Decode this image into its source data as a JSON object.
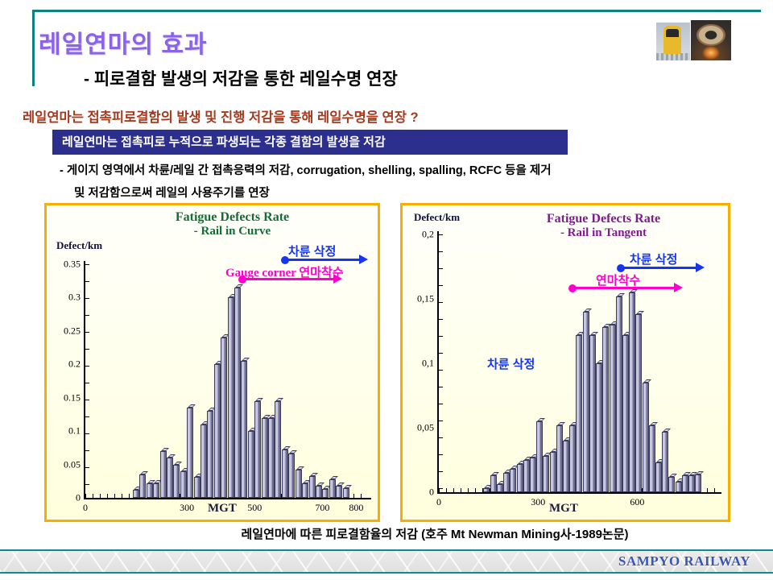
{
  "slide": {
    "title": "레일연마의 효과",
    "subtitle": "- 피로결함 발생의 저감을 통한 레일수명 연장",
    "lead_question": "레일연마는 접촉피로결함의 발생 및 진행 저감을 통해 레일수명을 연장  ?",
    "highlight": "레일연마는 접촉피로 누적으로 파생되는 각종 결함의 발생을 저감",
    "bullets": [
      "- 게이지 영역에서 차륜/레일 간 접촉응력의 저감, corrugation, shelling, spalling, RCFC 등을 제거",
      "및 저감함으로써 레일의 사용주기를 연장"
    ],
    "caption": "레일연마에 따른 피로결함율의 저감 (호주 Mt Newman Mining사-1989논문)",
    "footer_brand": "SAMPYO RAILWAY"
  },
  "photos": {
    "train": "yellow-train-on-track-photo",
    "grinder": "rail-grinding-wheel-with-sparks-photo"
  },
  "colors": {
    "title_purple": "#8a63e8",
    "lead_red": "#a53a1e",
    "highlight_bg": "#2d2f8f",
    "chart_border_gold": "#f5ae01",
    "curve_title_green": "#156b35",
    "tangent_title_purple": "#7b1e8a",
    "annotation_blue": "#1535ee",
    "annotation_magenta": "#ff00cc",
    "bar_face": "#c6c6e2",
    "bar_side": "#6e6e8e",
    "teal_rule": "#0e8080",
    "footer_brand_blue": "#3a56b0"
  },
  "chart_data": [
    {
      "type": "bar",
      "title": "Fatigue Defects Rate",
      "subtitle": "- Rail in Curve",
      "ylabel": "Defect/km",
      "xlabel": "MGT",
      "ylim": [
        0,
        0.35
      ],
      "yticks": [
        0,
        0.05,
        0.1,
        0.15,
        0.2,
        0.25,
        0.3,
        0.35
      ],
      "yticklabels": [
        "0",
        "0.05",
        "0.1",
        "0.15",
        "0.2",
        "0.25",
        "0.3",
        "0.35"
      ],
      "xlim": [
        0,
        830
      ],
      "xticks": [
        0,
        300,
        500,
        700,
        800
      ],
      "x_start": 140,
      "x_step": 20,
      "values": [
        0.012,
        0.035,
        0.022,
        0.022,
        0.07,
        0.06,
        0.05,
        0.04,
        0.135,
        0.032,
        0.11,
        0.13,
        0.2,
        0.24,
        0.3,
        0.315,
        0.205,
        0.1,
        0.145,
        0.12,
        0.12,
        0.145,
        0.072,
        0.067,
        0.042,
        0.022,
        0.033,
        0.018,
        0.013,
        0.028,
        0.018,
        0.014
      ],
      "annotations": [
        {
          "id": "wheel-truing",
          "text": "차륜 삭정",
          "color": "#1535ee",
          "arrow_from_mgt": 580,
          "arrow_to_mgt": 800
        },
        {
          "id": "gauge-corner-grinding",
          "text": "Gauge corner 연마착수",
          "color": "#ff00cc",
          "arrow_from_mgt": 455,
          "arrow_to_mgt": 725
        }
      ]
    },
    {
      "type": "bar",
      "title": "Fatigue Defects Rate",
      "subtitle": "- Rail in Tangent",
      "ylabel": "Defect/km",
      "xlabel": "MGT",
      "ylim": [
        0,
        0.2
      ],
      "yticks": [
        0,
        0.05,
        0.1,
        0.15,
        0.2
      ],
      "yticklabels": [
        "0",
        "0,05",
        "0,1",
        "0,15",
        "0,2"
      ],
      "xlim": [
        0,
        840
      ],
      "xticks": [
        0,
        300,
        600
      ],
      "x_start": 135,
      "x_step": 20,
      "values": [
        0.003,
        0.013,
        0.006,
        0.015,
        0.018,
        0.022,
        0.025,
        0.027,
        0.055,
        0.028,
        0.031,
        0.052,
        0.04,
        0.052,
        0.122,
        0.14,
        0.122,
        0.1,
        0.128,
        0.13,
        0.152,
        0.122,
        0.155,
        0.138,
        0.085,
        0.052,
        0.023,
        0.047,
        0.012,
        0.008,
        0.013,
        0.013,
        0.014
      ],
      "annotations": [
        {
          "id": "wheel-truing-note",
          "text": "차륜 삭정",
          "color": "#1535ee",
          "arrow_from_mgt": null,
          "arrow_to_mgt": null
        },
        {
          "id": "grinding-start",
          "text": "연마착수",
          "color": "#ff00cc",
          "arrow_from_mgt": 400,
          "arrow_to_mgt": 710
        },
        {
          "id": "wheel-truing",
          "text": "차륜 삭정",
          "color": "#1535ee",
          "arrow_from_mgt": 545,
          "arrow_to_mgt": 775
        }
      ]
    }
  ]
}
